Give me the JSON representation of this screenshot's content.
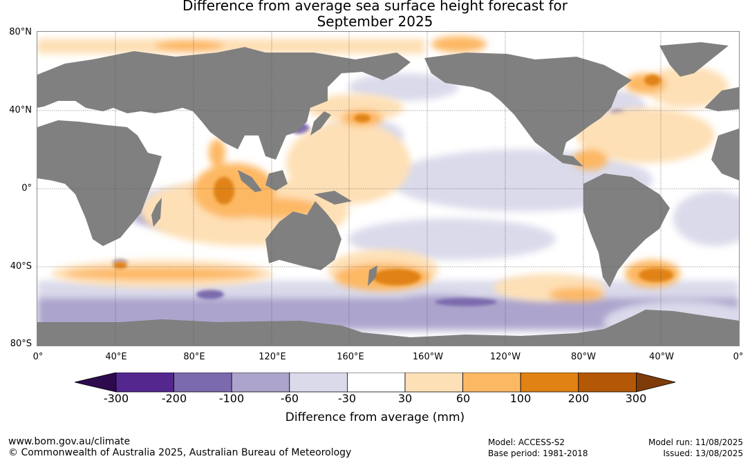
{
  "title": {
    "line1": "Difference from average sea surface height forecast for",
    "line2": "September 2025"
  },
  "colors": {
    "land": "#808080",
    "levels": [
      "#2d0a4e",
      "#54278f",
      "#7b6aad",
      "#ada4cd",
      "#dadaeb",
      "#ffffff",
      "#fee0b6",
      "#fdb863",
      "#e08214",
      "#b35806",
      "#7f3b08"
    ]
  },
  "lat_labels": [
    "80°N",
    "40°N",
    "0°",
    "40°S",
    "80°S"
  ],
  "lon_labels": [
    "0°",
    "40°E",
    "80°E",
    "120°E",
    "160°E",
    "160°W",
    "120°W",
    "80°W",
    "40°W",
    "0°"
  ],
  "colorbar": {
    "ticks": [
      "-300",
      "-200",
      "-100",
      "-60",
      "-30",
      "30",
      "60",
      "100",
      "200",
      "300"
    ],
    "title": "Difference from average (mm)"
  },
  "footer": {
    "website": "www.bom.gov.au/climate",
    "copyright": "© Commonwealth of Australia 2025, Australian Bureau of Meteorology",
    "model": "Model: ACCESS-S2",
    "base_period": "Base period: 1981-2018",
    "model_run": "Model run: 11/08/2025",
    "issued": "Issued: 13/08/2025"
  }
}
